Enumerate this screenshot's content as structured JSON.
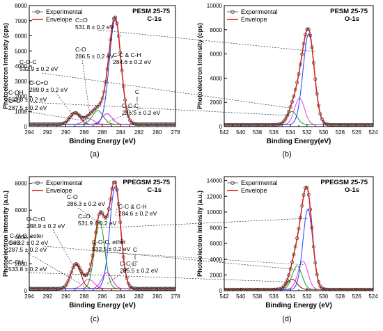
{
  "figure_labels": [
    "(a)",
    "(b)",
    "(c)",
    "(d)"
  ],
  "chart_data": [
    {
      "type": "line",
      "panel": "(a)",
      "title_line1": "PESM 25-75",
      "title_line2": "C-1s",
      "xlabel": "Binding Energy (eV)",
      "ylabel": "Photoelectron Intensity (cps)",
      "xlim": [
        294,
        278
      ],
      "ylim": [
        0,
        8000
      ],
      "x_ticks": [
        294,
        292,
        290,
        288,
        286,
        284,
        282,
        280,
        278
      ],
      "y_ticks": [
        0,
        1000,
        2000,
        3000,
        4000,
        5000,
        6000,
        7000,
        8000
      ],
      "legend": [
        "Experimental",
        "Envelope"
      ],
      "legend_position": "top-left",
      "baseline": 150,
      "components": [
        {
          "label": "C=O",
          "center": 287.5,
          "amplitude": 380,
          "fwhm": 1.3,
          "color": "#e040e0"
        },
        {
          "label": "O-C=O",
          "center": 289.0,
          "amplitude": 750,
          "fwhm": 1.3,
          "color": "#8b0000"
        },
        {
          "label": "C-O",
          "center": 286.5,
          "amplitude": 900,
          "fwhm": 1.4,
          "color": "#1a9a1a"
        },
        {
          "label": "C-C-C",
          "center": 285.5,
          "amplitude": 700,
          "fwhm": 1.3,
          "color": "#d020d0"
        },
        {
          "label": "C-C & C-H",
          "center": 284.6,
          "amplitude": 6900,
          "fwhm": 1.5,
          "color": "#1f3fff"
        }
      ],
      "annotations": [
        {
          "lines": [
            "C=O",
            "287.5 ± 0.2 eV"
          ]
        },
        {
          "lines": [
            "O-C=O",
            "289.0 ± 0.2 eV"
          ]
        },
        {
          "lines": [
            "C-O",
            "286.5 ± 0.2 eV"
          ]
        },
        {
          "lines": [
            "C-C & C-H",
            "284.6 ± 0.2 eV"
          ]
        },
        {
          "lines": [
            "C",
            "|",
            "C-C-C",
            "285.5 ± 0.2 eV"
          ]
        }
      ]
    },
    {
      "type": "line",
      "panel": "(b)",
      "title_line1": "PESM 25-75",
      "title_line2": "O-1s",
      "xlabel": "Binding Energy(eV)",
      "ylabel": "Photoelectron Intensity (cps)",
      "xlim": [
        542,
        524
      ],
      "ylim": [
        0,
        10000
      ],
      "x_ticks": [
        542,
        540,
        538,
        536,
        534,
        532,
        530,
        528,
        526,
        524
      ],
      "y_ticks": [
        0,
        2000,
        4000,
        6000,
        8000,
        10000
      ],
      "legend": [
        "Experimental",
        "Envelope"
      ],
      "legend_position": "top-left",
      "baseline": 150,
      "components": [
        {
          "label": "C-OH",
          "center": 533.8,
          "amplitude": 1100,
          "fwhm": 1.4,
          "color": "#1a9a1a"
        },
        {
          "label": "C-O-C",
          "center": 532.9,
          "amplitude": 2200,
          "fwhm": 1.4,
          "color": "#e040e0"
        },
        {
          "label": "C=O",
          "center": 531.8,
          "amplitude": 7500,
          "fwhm": 1.6,
          "color": "#1f3fff"
        }
      ],
      "annotations": [
        {
          "lines": [
            "C=O",
            "531.8 ± 0.2 eV"
          ]
        },
        {
          "lines": [
            "C-O-C",
            "532.9 ± 0.2 eV"
          ]
        },
        {
          "lines": [
            "C-OH",
            "533.8 ± 0.2 eV"
          ]
        }
      ]
    },
    {
      "type": "line",
      "panel": "(c)",
      "title_line1": "PPEGSM 25-75",
      "title_line2": "C-1s",
      "xlabel": "Binding Energy (eV)",
      "ylabel": "Photoelectron Intensity (a.u.)",
      "xlim": [
        294,
        278
      ],
      "ylim": [
        0,
        8500
      ],
      "x_ticks": [
        294,
        292,
        290,
        288,
        286,
        284,
        282,
        280,
        278
      ],
      "y_ticks": [
        0,
        2000,
        4000,
        6000,
        8000
      ],
      "legend": [
        "Experimental",
        "Envelope"
      ],
      "legend_position": "top-left",
      "baseline": 150,
      "components": [
        {
          "label": "C=O",
          "center": 287.5,
          "amplitude": 700,
          "fwhm": 1.4,
          "color": "#e040e0"
        },
        {
          "label": "O-C=O",
          "center": 288.9,
          "amplitude": 1800,
          "fwhm": 1.3,
          "color": "#8b0000"
        },
        {
          "label": "C-O",
          "center": 286.3,
          "amplitude": 5000,
          "fwhm": 1.3,
          "color": "#1a9a1a"
        },
        {
          "label": "C-C-C",
          "center": 285.5,
          "amplitude": 1200,
          "fwhm": 1.3,
          "color": "#d020d0"
        },
        {
          "label": "C-C & C-H",
          "center": 284.6,
          "amplitude": 7600,
          "fwhm": 1.4,
          "color": "#1f3fff"
        }
      ],
      "annotations": [
        {
          "lines": [
            "C=O",
            "287.5 ± 0.2 eV"
          ]
        },
        {
          "lines": [
            "O-C=O",
            "288.9 ± 0.2 eV"
          ]
        },
        {
          "lines": [
            "C-O",
            "286.3 ± 0.2 eV"
          ]
        },
        {
          "lines": [
            "C-C & C-H",
            "284.6 ± 0.2 eV"
          ]
        },
        {
          "lines": [
            "C",
            "|",
            "C-C-C",
            "285.5 ± 0.2 eV"
          ]
        }
      ]
    },
    {
      "type": "line",
      "panel": "(d)",
      "title_line1": "PPEGSM 25-75",
      "title_line2": "O-1s",
      "xlabel": "Binding Energy (eV)",
      "ylabel": "Photoelectron Intensity (a.u.)",
      "xlim": [
        542,
        524
      ],
      "ylim": [
        0,
        14500
      ],
      "x_ticks": [
        542,
        540,
        538,
        536,
        534,
        532,
        530,
        528,
        526,
        524
      ],
      "y_ticks": [
        0,
        2000,
        4000,
        6000,
        8000,
        10000,
        12000,
        14000
      ],
      "legend": [
        "Experimental",
        "Envelope"
      ],
      "legend_position": "top-left",
      "baseline": 150,
      "components": [
        {
          "label": "C-OH",
          "center": 533.8,
          "amplitude": 1300,
          "fwhm": 1.4,
          "color": "#8b0000"
        },
        {
          "label": "C-O-C, ester",
          "center": 533.2,
          "amplitude": 3000,
          "fwhm": 1.4,
          "color": "#1a9a1a"
        },
        {
          "label": "C-O-C, ether",
          "center": 532.5,
          "amplitude": 3600,
          "fwhm": 1.4,
          "color": "#e040e0"
        },
        {
          "label": "C=O",
          "center": 531.9,
          "amplitude": 10200,
          "fwhm": 1.4,
          "color": "#1f3fff"
        }
      ],
      "annotations": [
        {
          "lines": [
            "C=O",
            "531.9 ± 0.2 eV"
          ]
        },
        {
          "lines": [
            "C-O-C, ester",
            "533.2 ± 0.2 eV"
          ]
        },
        {
          "lines": [
            "C-O-C, ether",
            "532.5 ± 0.2 eV"
          ]
        },
        {
          "lines": [
            "C-OH",
            "533.8 ± 0.2 eV"
          ]
        }
      ]
    }
  ]
}
